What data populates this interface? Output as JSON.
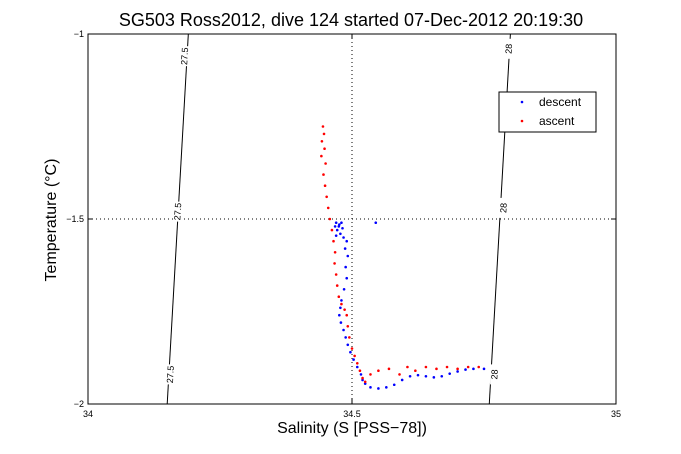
{
  "chart_data": {
    "type": "scatter",
    "title": "SG503 Ross2012, dive 124 started 07-Dec-2012 20:19:30",
    "xlabel": "Salinity (S [PSS−78])",
    "ylabel": "Temperature (°C)",
    "xlim": [
      34,
      35
    ],
    "ylim": [
      -2,
      -1
    ],
    "xticks": [
      {
        "value": 34,
        "label": "34"
      },
      {
        "value": 34.5,
        "label": "34.5"
      },
      {
        "value": 35,
        "label": "35"
      }
    ],
    "yticks": [
      {
        "value": -2,
        "label": "−2"
      },
      {
        "value": -1.5,
        "label": "−1.5"
      },
      {
        "value": -1,
        "label": "−1"
      }
    ],
    "grid": "dotted at x=34.5 and y=-1.5",
    "legend_position": "top-right",
    "contours": [
      {
        "label": "27.5",
        "points": [
          [
            34.19,
            -1.0
          ],
          [
            34.15,
            -2.0
          ]
        ],
        "labels_at": [
          [
            34.183,
            -1.06
          ],
          [
            34.17,
            -1.48
          ],
          [
            34.156,
            -1.92
          ]
        ]
      },
      {
        "label": "28",
        "points": [
          [
            34.8,
            -1.0
          ],
          [
            34.76,
            -2.0
          ]
        ],
        "labels_at": [
          [
            34.797,
            -1.04
          ],
          [
            34.787,
            -1.47
          ],
          [
            34.77,
            -1.92
          ]
        ]
      }
    ],
    "series": [
      {
        "name": "descent",
        "color": "#0000ff",
        "points": [
          [
            34.47,
            -1.51
          ],
          [
            34.475,
            -1.52
          ],
          [
            34.48,
            -1.51
          ],
          [
            34.472,
            -1.53
          ],
          [
            34.478,
            -1.54
          ],
          [
            34.468,
            -1.52
          ],
          [
            34.482,
            -1.525
          ],
          [
            34.476,
            -1.515
          ],
          [
            34.484,
            -1.55
          ],
          [
            34.47,
            -1.545
          ],
          [
            34.49,
            -1.56
          ],
          [
            34.487,
            -1.58
          ],
          [
            34.492,
            -1.6
          ],
          [
            34.488,
            -1.63
          ],
          [
            34.49,
            -1.66
          ],
          [
            34.485,
            -1.69
          ],
          [
            34.48,
            -1.72
          ],
          [
            34.478,
            -1.74
          ],
          [
            34.476,
            -1.76
          ],
          [
            34.479,
            -1.78
          ],
          [
            34.484,
            -1.8
          ],
          [
            34.488,
            -1.82
          ],
          [
            34.492,
            -1.84
          ],
          [
            34.497,
            -1.86
          ],
          [
            34.503,
            -1.88
          ],
          [
            34.51,
            -1.9
          ],
          [
            34.517,
            -1.92
          ],
          [
            34.52,
            -1.935
          ],
          [
            34.525,
            -1.945
          ],
          [
            34.535,
            -1.955
          ],
          [
            34.55,
            -1.958
          ],
          [
            34.565,
            -1.955
          ],
          [
            34.58,
            -1.948
          ],
          [
            34.595,
            -1.935
          ],
          [
            34.61,
            -1.925
          ],
          [
            34.625,
            -1.922
          ],
          [
            34.64,
            -1.925
          ],
          [
            34.655,
            -1.928
          ],
          [
            34.67,
            -1.925
          ],
          [
            34.685,
            -1.918
          ],
          [
            34.7,
            -1.912
          ],
          [
            34.715,
            -1.907
          ],
          [
            34.73,
            -1.905
          ],
          [
            34.75,
            -1.905
          ],
          [
            34.545,
            -1.51
          ]
        ]
      },
      {
        "name": "ascent",
        "color": "#ff0000",
        "points": [
          [
            34.445,
            -1.25
          ],
          [
            34.447,
            -1.27
          ],
          [
            34.443,
            -1.29
          ],
          [
            34.448,
            -1.31
          ],
          [
            34.442,
            -1.33
          ],
          [
            34.45,
            -1.35
          ],
          [
            34.446,
            -1.38
          ],
          [
            34.449,
            -1.41
          ],
          [
            34.452,
            -1.44
          ],
          [
            34.455,
            -1.47
          ],
          [
            34.458,
            -1.5
          ],
          [
            34.462,
            -1.53
          ],
          [
            34.465,
            -1.56
          ],
          [
            34.468,
            -1.59
          ],
          [
            34.467,
            -1.62
          ],
          [
            34.47,
            -1.65
          ],
          [
            34.472,
            -1.68
          ],
          [
            34.475,
            -1.71
          ],
          [
            34.48,
            -1.73
          ],
          [
            34.486,
            -1.745
          ],
          [
            34.49,
            -1.76
          ],
          [
            34.492,
            -1.79
          ],
          [
            34.495,
            -1.82
          ],
          [
            34.5,
            -1.85
          ],
          [
            34.505,
            -1.87
          ],
          [
            34.51,
            -1.89
          ],
          [
            34.515,
            -1.91
          ],
          [
            34.52,
            -1.93
          ],
          [
            34.525,
            -1.94
          ],
          [
            34.535,
            -1.92
          ],
          [
            34.55,
            -1.91
          ],
          [
            34.57,
            -1.905
          ],
          [
            34.59,
            -1.92
          ],
          [
            34.605,
            -1.9
          ],
          [
            34.62,
            -1.91
          ],
          [
            34.64,
            -1.9
          ],
          [
            34.66,
            -1.905
          ],
          [
            34.68,
            -1.9
          ],
          [
            34.7,
            -1.905
          ],
          [
            34.72,
            -1.9
          ],
          [
            34.74,
            -1.9
          ]
        ]
      }
    ]
  }
}
